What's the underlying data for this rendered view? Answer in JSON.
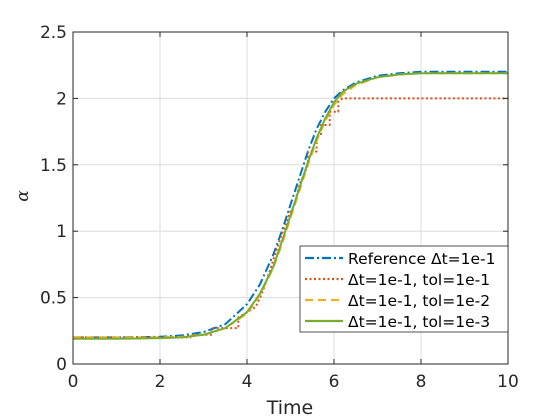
{
  "chart_data": {
    "type": "line",
    "xlabel": "Time",
    "ylabel": "α",
    "xlim": [
      0,
      10
    ],
    "ylim": [
      0,
      2.5
    ],
    "xticks": [
      "0",
      "2",
      "4",
      "6",
      "8",
      "10"
    ],
    "yticks": [
      "0",
      "0.5",
      "1",
      "1.5",
      "2",
      "2.5"
    ],
    "grid": true,
    "legend_position": "bottom-right",
    "series": [
      {
        "name": "Reference Δt=1e-1",
        "color": "#0072BD",
        "dash": "dashdot",
        "x": [
          0,
          1,
          2,
          2.5,
          3,
          3.5,
          4,
          4.3,
          4.6,
          4.8,
          5,
          5.2,
          5.4,
          5.6,
          5.8,
          6,
          6.2,
          6.5,
          7,
          7.5,
          8,
          8.5,
          9,
          10
        ],
        "y": [
          0.2,
          0.2,
          0.205,
          0.215,
          0.24,
          0.3,
          0.45,
          0.6,
          0.82,
          1.0,
          1.2,
          1.4,
          1.6,
          1.77,
          1.9,
          2.0,
          2.06,
          2.12,
          2.17,
          2.19,
          2.2,
          2.2,
          2.2,
          2.2
        ]
      },
      {
        "name": "Δt=1e-1, tol=1e-1",
        "color": "#D95319",
        "dash": "dotted",
        "x": [
          0,
          2.7,
          2.7,
          3.2,
          3.2,
          3.8,
          3.8,
          4.2,
          4.3,
          4.4,
          4.5,
          4.6,
          4.7,
          4.8,
          4.9,
          5.0,
          5.1,
          5.2,
          5.3,
          5.4,
          5.4,
          5.6,
          5.6,
          5.7,
          5.7,
          5.9,
          5.9,
          6.1,
          6.1,
          6.2,
          10
        ],
        "y": [
          0.2,
          0.2,
          0.22,
          0.22,
          0.27,
          0.27,
          0.35,
          0.43,
          0.5,
          0.58,
          0.68,
          0.78,
          0.88,
          0.98,
          1.06,
          1.15,
          1.2,
          1.35,
          1.42,
          1.5,
          1.6,
          1.6,
          1.72,
          1.72,
          1.8,
          1.8,
          1.9,
          1.9,
          1.98,
          2.0,
          2.0
        ]
      },
      {
        "name": "Δt=1e-1, tol=1e-2",
        "color": "#EDB120",
        "dash": "dashed",
        "x": [
          0,
          1,
          2,
          2.5,
          3,
          3.5,
          4,
          4.3,
          4.6,
          4.8,
          5,
          5.2,
          5.4,
          5.6,
          5.8,
          6,
          6.2,
          6.5,
          7,
          7.5,
          8,
          8.5,
          9,
          10
        ],
        "y": [
          0.2,
          0.2,
          0.2,
          0.205,
          0.22,
          0.27,
          0.38,
          0.52,
          0.72,
          0.9,
          1.1,
          1.3,
          1.5,
          1.68,
          1.83,
          1.95,
          2.03,
          2.1,
          2.16,
          2.18,
          2.19,
          2.19,
          2.19,
          2.19
        ]
      },
      {
        "name": "Δt=1e-1, tol=1e-3",
        "color": "#77AC30",
        "dash": "solid",
        "x": [
          0,
          1,
          2,
          2.5,
          3,
          3.5,
          4,
          4.3,
          4.6,
          4.8,
          5,
          5.2,
          5.4,
          5.6,
          5.8,
          6,
          6.2,
          6.5,
          7,
          7.5,
          8,
          8.5,
          9,
          10
        ],
        "y": [
          0.19,
          0.19,
          0.195,
          0.2,
          0.22,
          0.27,
          0.39,
          0.53,
          0.73,
          0.92,
          1.12,
          1.32,
          1.52,
          1.7,
          1.85,
          1.97,
          2.05,
          2.11,
          2.16,
          2.18,
          2.19,
          2.19,
          2.19,
          2.19
        ]
      }
    ]
  }
}
